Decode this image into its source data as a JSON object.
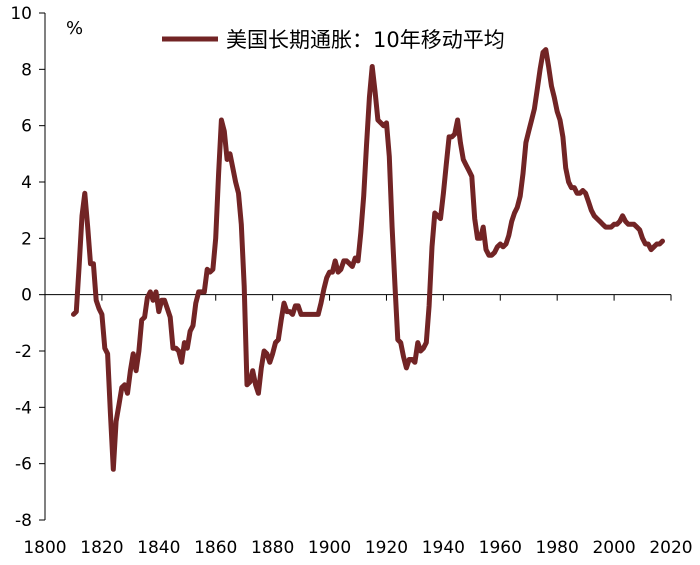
{
  "chart_data": {
    "type": "line",
    "title": "",
    "xlabel": "",
    "ylabel": "%",
    "xlim": [
      1800,
      2020
    ],
    "ylim": [
      -8,
      10
    ],
    "x_ticks": [
      "1800",
      "1820",
      "1840",
      "1860",
      "1880",
      "1900",
      "1920",
      "1940",
      "1960",
      "1980",
      "2000",
      "2020"
    ],
    "y_ticks": [
      "10",
      "8",
      "6",
      "4",
      "2",
      "0",
      "-2",
      "-4",
      "-6",
      "-8"
    ],
    "grid": false,
    "legend_position": "top",
    "series": [
      {
        "name": "美国长期通胀：10年移动平均",
        "color": "#722425",
        "points": [
          [
            1810,
            -0.7
          ],
          [
            1811,
            -0.6
          ],
          [
            1812,
            1.0
          ],
          [
            1813,
            2.8
          ],
          [
            1814,
            3.6
          ],
          [
            1815,
            2.4
          ],
          [
            1816,
            1.1
          ],
          [
            1817,
            1.1
          ],
          [
            1818,
            -0.2
          ],
          [
            1819,
            -0.5
          ],
          [
            1820,
            -0.7
          ],
          [
            1821,
            -1.9
          ],
          [
            1822,
            -2.1
          ],
          [
            1823,
            -4.2
          ],
          [
            1824,
            -6.2
          ],
          [
            1825,
            -4.5
          ],
          [
            1826,
            -3.9
          ],
          [
            1827,
            -3.3
          ],
          [
            1828,
            -3.2
          ],
          [
            1829,
            -3.5
          ],
          [
            1830,
            -2.7
          ],
          [
            1831,
            -2.1
          ],
          [
            1832,
            -2.7
          ],
          [
            1833,
            -2.0
          ],
          [
            1834,
            -0.9
          ],
          [
            1835,
            -0.8
          ],
          [
            1836,
            -0.1
          ],
          [
            1837,
            0.1
          ],
          [
            1838,
            -0.2
          ],
          [
            1839,
            0.1
          ],
          [
            1840,
            -0.6
          ],
          [
            1841,
            -0.2
          ],
          [
            1842,
            -0.2
          ],
          [
            1843,
            -0.5
          ],
          [
            1844,
            -0.8
          ],
          [
            1845,
            -1.9
          ],
          [
            1846,
            -1.9
          ],
          [
            1847,
            -2.0
          ],
          [
            1848,
            -2.4
          ],
          [
            1849,
            -1.7
          ],
          [
            1850,
            -1.9
          ],
          [
            1851,
            -1.3
          ],
          [
            1852,
            -1.1
          ],
          [
            1853,
            -0.3
          ],
          [
            1854,
            0.1
          ],
          [
            1855,
            0.1
          ],
          [
            1856,
            0.1
          ],
          [
            1857,
            0.9
          ],
          [
            1858,
            0.8
          ],
          [
            1859,
            0.9
          ],
          [
            1860,
            2.0
          ],
          [
            1861,
            4.3
          ],
          [
            1862,
            6.2
          ],
          [
            1863,
            5.8
          ],
          [
            1864,
            4.8
          ],
          [
            1865,
            5.0
          ],
          [
            1866,
            4.5
          ],
          [
            1867,
            4.0
          ],
          [
            1868,
            3.6
          ],
          [
            1869,
            2.5
          ],
          [
            1870,
            0.3
          ],
          [
            1871,
            -3.2
          ],
          [
            1872,
            -3.1
          ],
          [
            1873,
            -2.7
          ],
          [
            1874,
            -3.2
          ],
          [
            1875,
            -3.5
          ],
          [
            1876,
            -2.6
          ],
          [
            1877,
            -2.0
          ],
          [
            1878,
            -2.1
          ],
          [
            1879,
            -2.4
          ],
          [
            1880,
            -2.1
          ],
          [
            1881,
            -1.7
          ],
          [
            1882,
            -1.6
          ],
          [
            1883,
            -0.9
          ],
          [
            1884,
            -0.3
          ],
          [
            1885,
            -0.6
          ],
          [
            1886,
            -0.6
          ],
          [
            1887,
            -0.7
          ],
          [
            1888,
            -0.4
          ],
          [
            1889,
            -0.4
          ],
          [
            1890,
            -0.7
          ],
          [
            1891,
            -0.7
          ],
          [
            1892,
            -0.7
          ],
          [
            1893,
            -0.7
          ],
          [
            1894,
            -0.7
          ],
          [
            1895,
            -0.7
          ],
          [
            1896,
            -0.7
          ],
          [
            1897,
            -0.3
          ],
          [
            1898,
            0.2
          ],
          [
            1899,
            0.6
          ],
          [
            1900,
            0.8
          ],
          [
            1901,
            0.8
          ],
          [
            1902,
            1.2
          ],
          [
            1903,
            0.8
          ],
          [
            1904,
            0.9
          ],
          [
            1905,
            1.2
          ],
          [
            1906,
            1.2
          ],
          [
            1907,
            1.1
          ],
          [
            1908,
            1.0
          ],
          [
            1909,
            1.3
          ],
          [
            1910,
            1.2
          ],
          [
            1911,
            2.2
          ],
          [
            1912,
            3.5
          ],
          [
            1913,
            5.3
          ],
          [
            1914,
            7.0
          ],
          [
            1915,
            8.1
          ],
          [
            1916,
            7.2
          ],
          [
            1917,
            6.2
          ],
          [
            1918,
            6.1
          ],
          [
            1919,
            6.0
          ],
          [
            1920,
            6.1
          ],
          [
            1921,
            4.9
          ],
          [
            1922,
            2.4
          ],
          [
            1923,
            0.3
          ],
          [
            1924,
            -1.6
          ],
          [
            1925,
            -1.7
          ],
          [
            1926,
            -2.2
          ],
          [
            1927,
            -2.6
          ],
          [
            1928,
            -2.3
          ],
          [
            1929,
            -2.3
          ],
          [
            1930,
            -2.4
          ],
          [
            1931,
            -1.7
          ],
          [
            1932,
            -2.0
          ],
          [
            1933,
            -1.9
          ],
          [
            1934,
            -1.7
          ],
          [
            1935,
            -0.4
          ],
          [
            1936,
            1.7
          ],
          [
            1937,
            2.9
          ],
          [
            1938,
            2.8
          ],
          [
            1939,
            2.7
          ],
          [
            1940,
            3.6
          ],
          [
            1941,
            4.6
          ],
          [
            1942,
            5.6
          ],
          [
            1943,
            5.6
          ],
          [
            1944,
            5.7
          ],
          [
            1945,
            6.2
          ],
          [
            1946,
            5.4
          ],
          [
            1947,
            4.8
          ],
          [
            1948,
            4.6
          ],
          [
            1949,
            4.4
          ],
          [
            1950,
            4.2
          ],
          [
            1951,
            2.7
          ],
          [
            1952,
            2.0
          ],
          [
            1953,
            2.0
          ],
          [
            1954,
            2.4
          ],
          [
            1955,
            1.6
          ],
          [
            1956,
            1.4
          ],
          [
            1957,
            1.4
          ],
          [
            1958,
            1.5
          ],
          [
            1959,
            1.7
          ],
          [
            1960,
            1.8
          ],
          [
            1961,
            1.7
          ],
          [
            1962,
            1.8
          ],
          [
            1963,
            2.1
          ],
          [
            1964,
            2.6
          ],
          [
            1965,
            2.9
          ],
          [
            1966,
            3.1
          ],
          [
            1967,
            3.5
          ],
          [
            1968,
            4.3
          ],
          [
            1969,
            5.4
          ],
          [
            1970,
            5.8
          ],
          [
            1971,
            6.2
          ],
          [
            1972,
            6.6
          ],
          [
            1973,
            7.3
          ],
          [
            1974,
            8.0
          ],
          [
            1975,
            8.6
          ],
          [
            1976,
            8.7
          ],
          [
            1977,
            8.1
          ],
          [
            1978,
            7.4
          ],
          [
            1979,
            7.0
          ],
          [
            1980,
            6.5
          ],
          [
            1981,
            6.2
          ],
          [
            1982,
            5.6
          ],
          [
            1983,
            4.5
          ],
          [
            1984,
            4.0
          ],
          [
            1985,
            3.8
          ],
          [
            1986,
            3.8
          ],
          [
            1987,
            3.6
          ],
          [
            1988,
            3.6
          ],
          [
            1989,
            3.7
          ],
          [
            1990,
            3.6
          ],
          [
            1991,
            3.3
          ],
          [
            1992,
            3.0
          ],
          [
            1993,
            2.8
          ],
          [
            1994,
            2.7
          ],
          [
            1995,
            2.6
          ],
          [
            1996,
            2.5
          ],
          [
            1997,
            2.4
          ],
          [
            1998,
            2.4
          ],
          [
            1999,
            2.4
          ],
          [
            2000,
            2.5
          ],
          [
            2001,
            2.5
          ],
          [
            2002,
            2.6
          ],
          [
            2003,
            2.8
          ],
          [
            2004,
            2.6
          ],
          [
            2005,
            2.5
          ],
          [
            2006,
            2.5
          ],
          [
            2007,
            2.5
          ],
          [
            2008,
            2.4
          ],
          [
            2009,
            2.3
          ],
          [
            2010,
            2.0
          ],
          [
            2011,
            1.8
          ],
          [
            2012,
            1.8
          ],
          [
            2013,
            1.6
          ],
          [
            2014,
            1.7
          ],
          [
            2015,
            1.8
          ],
          [
            2016,
            1.8
          ],
          [
            2017,
            1.9
          ]
        ]
      }
    ]
  }
}
